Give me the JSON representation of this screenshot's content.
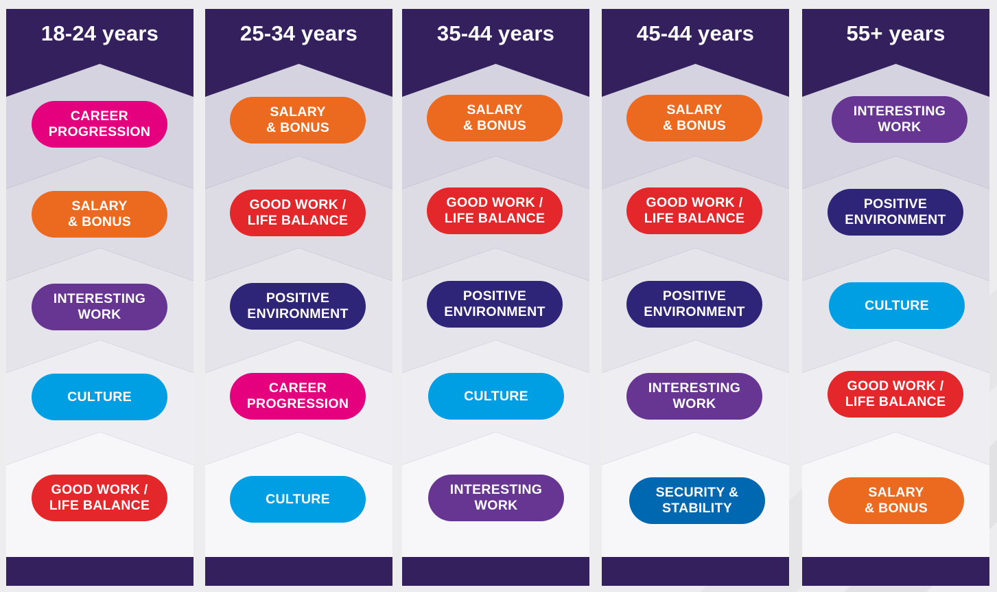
{
  "colors": {
    "header": "#35205e",
    "bands": [
      "#d5d3df",
      "#dddbe4",
      "#e5e4ea",
      "#eeedf2",
      "#f7f7fa"
    ],
    "categories": {
      "career": "#e5007e",
      "salary": "#ec6a1f",
      "interesting": "#673592",
      "culture": "#009fe3",
      "balance": "#e3272b",
      "positive": "#2e2478",
      "security": "#0067b1"
    }
  },
  "columns": [
    {
      "title": "18-24 years",
      "items": [
        {
          "label": "CAREER\nPROGRESSION",
          "category": "career"
        },
        {
          "label": "SALARY\n& BONUS",
          "category": "salary"
        },
        {
          "label": "INTERESTING\nWORK",
          "category": "interesting"
        },
        {
          "label": "CULTURE",
          "category": "culture"
        },
        {
          "label": "GOOD WORK /\nLIFE BALANCE",
          "category": "balance"
        }
      ]
    },
    {
      "title": "25-34 years",
      "items": [
        {
          "label": "SALARY\n& BONUS",
          "category": "salary"
        },
        {
          "label": "GOOD WORK /\nLIFE BALANCE",
          "category": "balance"
        },
        {
          "label": "POSITIVE\nENVIRONMENT",
          "category": "positive"
        },
        {
          "label": "CAREER\nPROGRESSION",
          "category": "career"
        },
        {
          "label": "CULTURE",
          "category": "culture"
        }
      ]
    },
    {
      "title": "35-44 years",
      "items": [
        {
          "label": "SALARY\n& BONUS",
          "category": "salary"
        },
        {
          "label": "GOOD WORK /\nLIFE BALANCE",
          "category": "balance"
        },
        {
          "label": "POSITIVE\nENVIRONMENT",
          "category": "positive"
        },
        {
          "label": "CULTURE",
          "category": "culture"
        },
        {
          "label": "INTERESTING\nWORK",
          "category": "interesting"
        }
      ]
    },
    {
      "title": "45-44 years",
      "items": [
        {
          "label": "SALARY\n& BONUS",
          "category": "salary"
        },
        {
          "label": "GOOD WORK /\nLIFE BALANCE",
          "category": "balance"
        },
        {
          "label": "POSITIVE\nENVIRONMENT",
          "category": "positive"
        },
        {
          "label": "INTERESTING\nWORK",
          "category": "interesting"
        },
        {
          "label": "SECURITY &\nSTABILITY",
          "category": "security"
        }
      ]
    },
    {
      "title": "55+ years",
      "items": [
        {
          "label": "INTERESTING\nWORK",
          "category": "interesting"
        },
        {
          "label": "POSITIVE\nENVIRONMENT",
          "category": "positive"
        },
        {
          "label": "CULTURE",
          "category": "culture"
        },
        {
          "label": "GOOD WORK /\nLIFE BALANCE",
          "category": "balance"
        },
        {
          "label": "SALARY\n& BONUS",
          "category": "salary"
        }
      ]
    }
  ]
}
